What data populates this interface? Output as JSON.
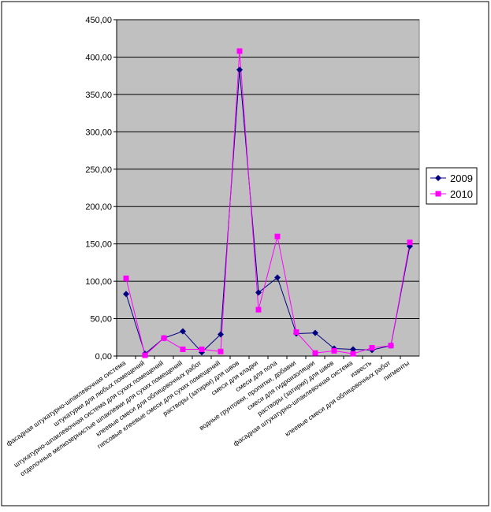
{
  "chart_data": {
    "type": "line",
    "categories": [
      "фасадная штукатурно-шпаклевочная система",
      "штукатурки для любых помещений",
      "штукатурно-шпаклевочная система для сухих помещений",
      "отделочные мелкозернистые шпаклевки для сухих помещений",
      "клеевые смеси для облицовочных работ",
      "гипсовые клеевые смеси для сухих помещений",
      "растворы (затирки) для швов",
      "смеси для кладки",
      "смеси для пола",
      "водные грунтовки, пропитки, добавки",
      "смеси для гидроизоляции",
      "растворы (затирки) для швов",
      "фасадная штукатурно-шпаклевочная система",
      "известь",
      "клеевые смеси для облицовочных работ",
      "пигменты"
    ],
    "series": [
      {
        "name": "2009",
        "color": "#000080",
        "marker": "diamond",
        "values": [
          83,
          3,
          24,
          33,
          5,
          29,
          383,
          85,
          105,
          30,
          31,
          10,
          9,
          8,
          14,
          147
        ]
      },
      {
        "name": "2010",
        "color": "#ff00ff",
        "marker": "square",
        "values": [
          104,
          1,
          24,
          9,
          9,
          6,
          408,
          62,
          160,
          32,
          4,
          7,
          3,
          11,
          14,
          152
        ]
      }
    ],
    "ylim": [
      0,
      450
    ],
    "yticks": [
      {
        "value": 0,
        "label": "0,00"
      },
      {
        "value": 50,
        "label": "50,00"
      },
      {
        "value": 100,
        "label": "100,00"
      },
      {
        "value": 150,
        "label": "150,00"
      },
      {
        "value": 200,
        "label": "200,00"
      },
      {
        "value": 250,
        "label": "250,00"
      },
      {
        "value": 300,
        "label": "300,00"
      },
      {
        "value": 350,
        "label": "350,00"
      },
      {
        "value": 400,
        "label": "400,00"
      },
      {
        "value": 450,
        "label": "450,00"
      }
    ],
    "grid": true,
    "legend": "right"
  }
}
